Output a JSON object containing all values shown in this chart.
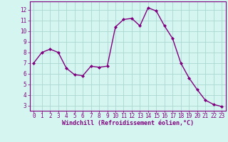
{
  "x": [
    0,
    1,
    2,
    3,
    4,
    5,
    6,
    7,
    8,
    9,
    10,
    11,
    12,
    13,
    14,
    15,
    16,
    17,
    18,
    19,
    20,
    21,
    22,
    23
  ],
  "y": [
    7.0,
    8.0,
    8.3,
    8.0,
    6.5,
    5.9,
    5.8,
    6.7,
    6.6,
    6.7,
    10.4,
    11.1,
    11.2,
    10.5,
    12.2,
    11.9,
    10.5,
    9.3,
    7.0,
    5.6,
    4.5,
    3.5,
    3.1,
    2.9
  ],
  "line_color": "#800080",
  "marker": "D",
  "marker_size": 2.0,
  "bg_color": "#d5f5f0",
  "grid_color": "#aad8d0",
  "xlabel": "Windchill (Refroidissement éolien,°C)",
  "xlabel_color": "#800080",
  "tick_color": "#800080",
  "ylim": [
    2.5,
    12.8
  ],
  "xlim": [
    -0.5,
    23.5
  ],
  "yticks": [
    3,
    4,
    5,
    6,
    7,
    8,
    9,
    10,
    11,
    12
  ],
  "xticks": [
    0,
    1,
    2,
    3,
    4,
    5,
    6,
    7,
    8,
    9,
    10,
    11,
    12,
    13,
    14,
    15,
    16,
    17,
    18,
    19,
    20,
    21,
    22,
    23
  ],
  "spine_color": "#800080",
  "tick_fontsize": 5.5,
  "xlabel_fontsize": 6.0,
  "linewidth": 1.0
}
